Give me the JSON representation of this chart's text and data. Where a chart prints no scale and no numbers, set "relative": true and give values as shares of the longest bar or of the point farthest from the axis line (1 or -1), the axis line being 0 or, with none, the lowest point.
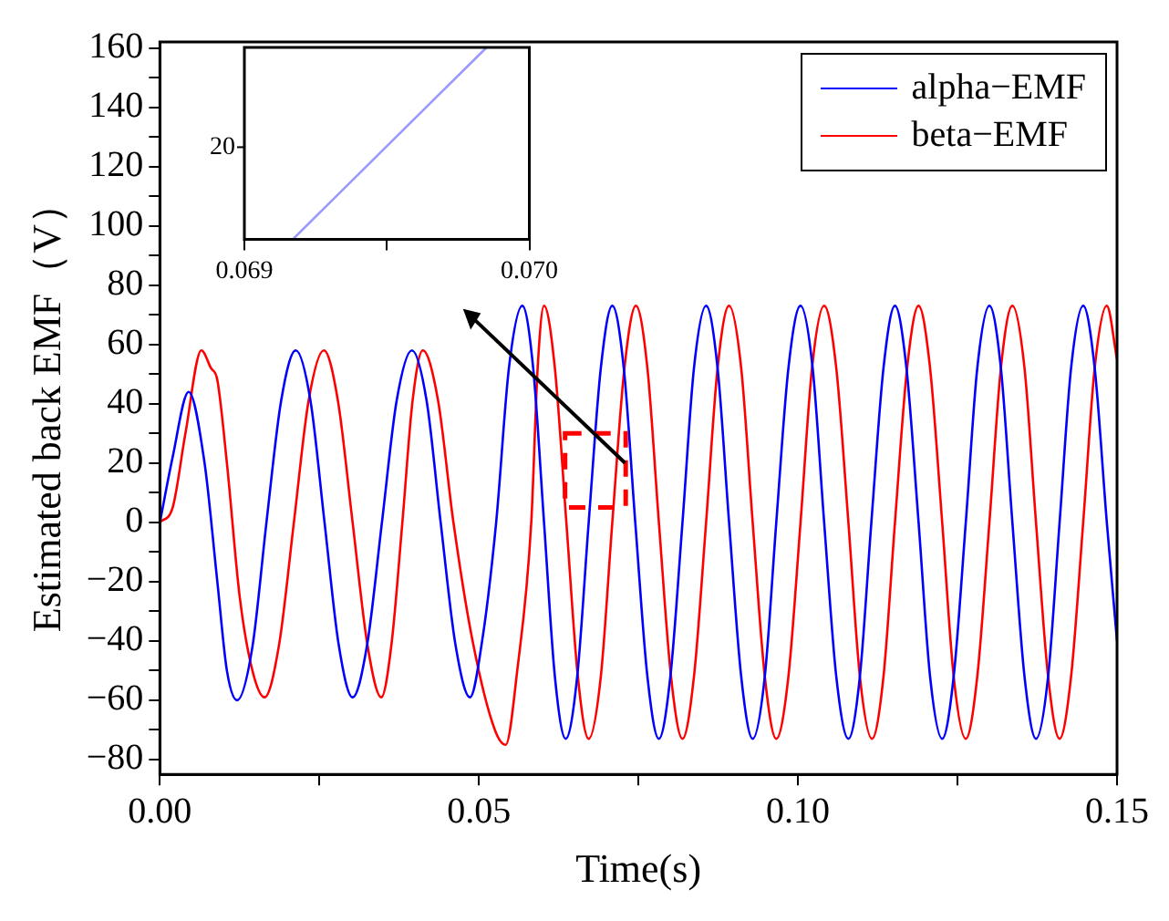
{
  "chart_data": [
    {
      "type": "line",
      "xlabel": "Time(s)",
      "ylabel": "Estimated back EMF（V）",
      "xlim": [
        0,
        0.15
      ],
      "ylim": [
        -85,
        162
      ],
      "xticks": [
        {
          "value": 0,
          "label": "0.00"
        },
        {
          "value": 0.025,
          "label": null
        },
        {
          "value": 0.05,
          "label": "0.05"
        },
        {
          "value": 0.075,
          "label": null
        },
        {
          "value": 0.1,
          "label": "0.10"
        },
        {
          "value": 0.125,
          "label": null
        },
        {
          "value": 0.15,
          "label": "0.15"
        }
      ],
      "yticks": [
        -80,
        {
          "value": -70,
          "label": null
        },
        -60,
        {
          "value": -50,
          "label": null
        },
        -40,
        {
          "value": -30,
          "label": null
        },
        -20,
        {
          "value": -10,
          "label": null
        },
        0,
        {
          "value": 10,
          "label": null
        },
        20,
        {
          "value": 30,
          "label": null
        },
        40,
        {
          "value": 50,
          "label": null
        },
        60,
        {
          "value": 70,
          "label": null
        },
        80,
        {
          "value": 90,
          "label": null
        },
        100,
        {
          "value": 110,
          "label": null
        },
        120,
        {
          "value": 130,
          "label": null
        },
        140,
        {
          "value": 150,
          "label": null
        },
        160
      ],
      "grid": false,
      "legend": "top right",
      "line_style": "solid",
      "marker": "none",
      "series": [
        {
          "name": "alpha−EMF",
          "color": "#0000ff",
          "x": [
            0,
            0.002,
            0.0045,
            0.007,
            0.009,
            0.0105,
            0.0121,
            0.0145,
            0.0167,
            0.019,
            0.0213,
            0.0236,
            0.0258,
            0.028,
            0.0302,
            0.0325,
            0.0348,
            0.0371,
            0.0395,
            0.0418,
            0.044,
            0.0463,
            0.0486,
            0.0505,
            0.0527,
            0.0547,
            0.0568,
            0.0585,
            0.0602,
            0.0619,
            0.0636,
            0.0654,
            0.0672,
            0.0691,
            0.0709,
            0.0727,
            0.0745,
            0.0764,
            0.0782,
            0.08,
            0.0819,
            0.0837,
            0.0856,
            0.0874,
            0.0892,
            0.0911,
            0.0929,
            0.0948,
            0.0966,
            0.0985,
            0.1004,
            0.1023,
            0.1041,
            0.106,
            0.1079,
            0.1097,
            0.1115,
            0.1134,
            0.1152,
            0.117,
            0.1189,
            0.1207,
            0.1226,
            0.1244,
            0.1263,
            0.1281,
            0.13,
            0.1318,
            0.1336,
            0.1355,
            0.1373,
            0.1392,
            0.141,
            0.1428,
            0.1447,
            0.1465,
            0.1484,
            0.15
          ],
          "values": [
            0,
            22,
            44,
            20,
            -20,
            -50,
            -60,
            -42,
            0,
            41,
            58,
            41,
            0,
            -41,
            -59,
            -41,
            0,
            41,
            58,
            41,
            0,
            -41,
            -59,
            -40,
            0,
            52,
            73,
            52,
            0,
            -52,
            -73,
            -52,
            0,
            52,
            73,
            52,
            0,
            -52,
            -73,
            -52,
            0,
            52,
            73,
            52,
            0,
            -52,
            -73,
            -52,
            0,
            52,
            73,
            52,
            0,
            -52,
            -73,
            -52,
            0,
            52,
            73,
            52,
            0,
            -52,
            -73,
            -52,
            0,
            52,
            73,
            52,
            0,
            -52,
            -73,
            -52,
            0,
            52,
            73,
            52,
            0,
            -40
          ]
        },
        {
          "name": "beta−EMF",
          "color": "#ff0000",
          "x": [
            0,
            0.002,
            0.004,
            0.0065,
            0.008,
            0.009,
            0.0105,
            0.0125,
            0.0145,
            0.0164,
            0.0187,
            0.021,
            0.0233,
            0.0257,
            0.0279,
            0.0302,
            0.0325,
            0.0347,
            0.0363,
            0.038,
            0.0396,
            0.0412,
            0.0436,
            0.046,
            0.049,
            0.0525,
            0.0542,
            0.056,
            0.0582,
            0.0592,
            0.0602,
            0.0619,
            0.0637,
            0.0655,
            0.0672,
            0.0691,
            0.0709,
            0.0728,
            0.0746,
            0.0764,
            0.0782,
            0.0801,
            0.0819,
            0.0837,
            0.0856,
            0.0874,
            0.0892,
            0.0911,
            0.0929,
            0.0948,
            0.0966,
            0.0985,
            0.1004,
            0.1022,
            0.1041,
            0.106,
            0.1079,
            0.1097,
            0.1116,
            0.1134,
            0.1152,
            0.1171,
            0.1189,
            0.1207,
            0.1226,
            0.1244,
            0.1263,
            0.1281,
            0.13,
            0.1318,
            0.1336,
            0.1355,
            0.1373,
            0.1392,
            0.141,
            0.1428,
            0.1447,
            0.1465,
            0.1484,
            0.15
          ],
          "values": [
            0,
            5,
            30,
            58,
            52,
            48,
            20,
            -25,
            -50,
            -59,
            -41,
            0,
            41,
            58,
            41,
            0,
            -41,
            -59,
            -41,
            0,
            41,
            58,
            41,
            0,
            -40,
            -70,
            -75,
            -50,
            0,
            52,
            73,
            52,
            0,
            -52,
            -73,
            -52,
            0,
            52,
            73,
            52,
            0,
            -52,
            -73,
            -52,
            0,
            52,
            73,
            52,
            0,
            -52,
            -73,
            -52,
            0,
            52,
            73,
            52,
            0,
            -52,
            -73,
            -52,
            0,
            52,
            73,
            52,
            0,
            -52,
            -73,
            -52,
            0,
            52,
            73,
            52,
            0,
            -52,
            -73,
            -52,
            0,
            52,
            73,
            55
          ]
        }
      ]
    },
    {
      "type": "line",
      "relative": true,
      "xlim": [
        0.069,
        0.07
      ],
      "xticks": [
        0.069,
        {
          "value": 0.0695,
          "label": null
        },
        {
          "value": 0.07,
          "label": "0.070"
        }
      ],
      "annotations": [
        "20"
      ],
      "grid": false,
      "legend": false,
      "marker": "none",
      "line_style": "solid",
      "series": [
        {
          "color": "#9999ff",
          "x": [
            0.06917,
            0.06985
          ],
          "values": [
            0,
            1
          ]
        }
      ]
    }
  ]
}
